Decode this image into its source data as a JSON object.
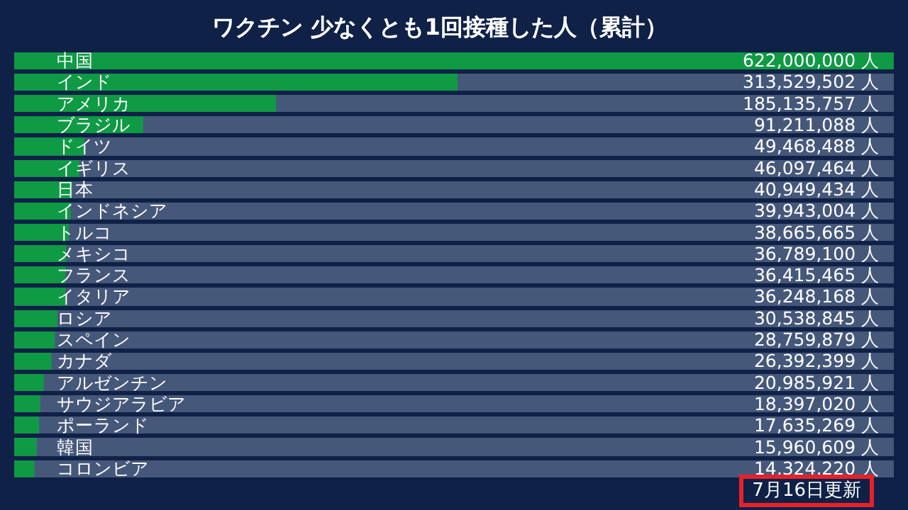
{
  "chart_data": {
    "type": "bar",
    "orientation": "horizontal",
    "title": "ワクチン 少なくとも1回接種した人（累計）",
    "categories": [
      "中国",
      "インド",
      "アメリカ",
      "ブラジル",
      "ドイツ",
      "イギリス",
      "日本",
      "インドネシア",
      "トルコ",
      "メキシコ",
      "フランス",
      "イタリア",
      "ロシア",
      "スペイン",
      "カナダ",
      "アルゼンチン",
      "サウジアラビア",
      "ポーランド",
      "韓国",
      "コロンビア"
    ],
    "values": [
      622000000,
      313529502,
      185135757,
      91211088,
      49468488,
      46097464,
      40949434,
      39943004,
      38665665,
      36789100,
      36415465,
      36248168,
      30538845,
      28759879,
      26392399,
      20985921,
      18397020,
      17635269,
      15960609,
      14324220
    ],
    "value_labels": [
      "622,000,000 人",
      "313,529,502 人",
      "185,135,757 人",
      "91,211,088 人",
      "49,468,488 人",
      "46,097,464 人",
      "40,949,434 人",
      "39,943,004 人",
      "38,665,665 人",
      "36,789,100 人",
      "36,415,465 人",
      "36,248,168 人",
      "30,538,845 人",
      "28,759,879 人",
      "26,392,399 人",
      "20,985,921 人",
      "18,397,020 人",
      "17,635,269 人",
      "15,960,609 人",
      "14,324,220 人"
    ],
    "color": "#0f9a44",
    "annotations": [
      "7月16日更新"
    ]
  }
}
